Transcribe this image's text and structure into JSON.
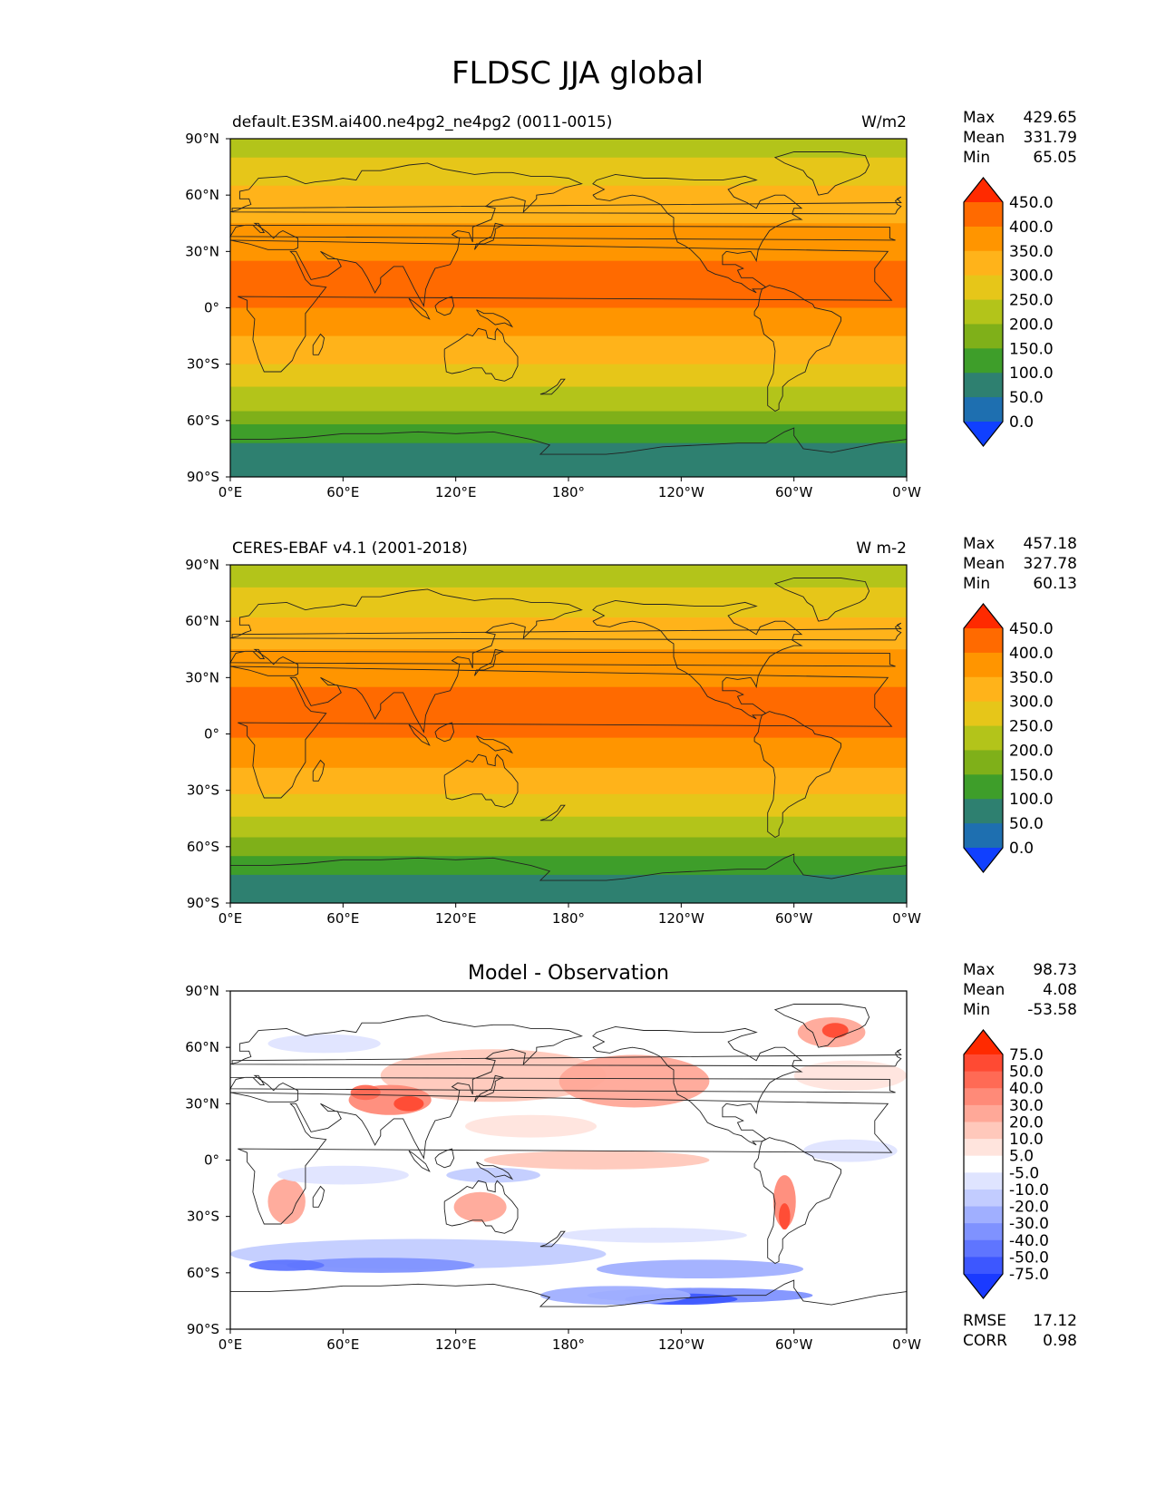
{
  "title": "FLDSC JJA global",
  "x_ticks": [
    "0°E",
    "60°E",
    "120°E",
    "180°",
    "120°W",
    "60°W",
    "0°W"
  ],
  "y_ticks": [
    "90°N",
    "60°N",
    "30°N",
    "0°",
    "30°S",
    "60°S",
    "90°S"
  ],
  "panels": [
    {
      "left_title": "default.E3SM.ai400.ne4pg2_ne4pg2 (0011-0015)",
      "center_title": "",
      "units": "W/m2",
      "stats": {
        "labels": [
          "Max",
          "Mean",
          "Min"
        ],
        "values": [
          "429.65",
          "331.79",
          "65.05"
        ]
      },
      "colorbar": {
        "labels": [
          "450.0",
          "400.0",
          "350.0",
          "300.0",
          "250.0",
          "200.0",
          "150.0",
          "100.0",
          "50.0",
          "0.0"
        ],
        "colors": [
          "#ff2a00",
          "#ff6a00",
          "#ff9500",
          "#ffb31a",
          "#e6c619",
          "#b3c41a",
          "#7fb019",
          "#3e9e2a",
          "#2e8070",
          "#1e6fb0",
          "#1040ff"
        ]
      },
      "map_bands": [
        {
          "lat0": 90,
          "lat1": 80,
          "color": "#b3c41a"
        },
        {
          "lat0": 80,
          "lat1": 65,
          "color": "#e6c619"
        },
        {
          "lat0": 65,
          "lat1": 45,
          "color": "#ffb31a"
        },
        {
          "lat0": 45,
          "lat1": 25,
          "color": "#ff9500"
        },
        {
          "lat0": 25,
          "lat1": 0,
          "color": "#ff6a00"
        },
        {
          "lat0": 0,
          "lat1": -15,
          "color": "#ff9500"
        },
        {
          "lat0": -15,
          "lat1": -30,
          "color": "#ffb31a"
        },
        {
          "lat0": -30,
          "lat1": -42,
          "color": "#e6c619"
        },
        {
          "lat0": -42,
          "lat1": -55,
          "color": "#b3c41a"
        },
        {
          "lat0": -55,
          "lat1": -62,
          "color": "#7fb019"
        },
        {
          "lat0": -62,
          "lat1": -72,
          "color": "#3e9e2a"
        },
        {
          "lat0": -72,
          "lat1": -90,
          "color": "#2e8070"
        }
      ]
    },
    {
      "left_title": "CERES-EBAF v4.1 (2001-2018)",
      "center_title": "",
      "units": "W m-2",
      "stats": {
        "labels": [
          "Max",
          "Mean",
          "Min"
        ],
        "values": [
          "457.18",
          "327.78",
          "60.13"
        ]
      },
      "colorbar": {
        "labels": [
          "450.0",
          "400.0",
          "350.0",
          "300.0",
          "250.0",
          "200.0",
          "150.0",
          "100.0",
          "50.0",
          "0.0"
        ],
        "colors": [
          "#ff2a00",
          "#ff6a00",
          "#ff9500",
          "#ffb31a",
          "#e6c619",
          "#b3c41a",
          "#7fb019",
          "#3e9e2a",
          "#2e8070",
          "#1e6fb0",
          "#1040ff"
        ]
      },
      "map_bands": [
        {
          "lat0": 90,
          "lat1": 78,
          "color": "#b3c41a"
        },
        {
          "lat0": 78,
          "lat1": 62,
          "color": "#e6c619"
        },
        {
          "lat0": 62,
          "lat1": 45,
          "color": "#ffb31a"
        },
        {
          "lat0": 45,
          "lat1": 25,
          "color": "#ff9500"
        },
        {
          "lat0": 25,
          "lat1": -2,
          "color": "#ff6a00"
        },
        {
          "lat0": -2,
          "lat1": -18,
          "color": "#ff9500"
        },
        {
          "lat0": -18,
          "lat1": -32,
          "color": "#ffb31a"
        },
        {
          "lat0": -32,
          "lat1": -44,
          "color": "#e6c619"
        },
        {
          "lat0": -44,
          "lat1": -55,
          "color": "#b3c41a"
        },
        {
          "lat0": -55,
          "lat1": -65,
          "color": "#7fb019"
        },
        {
          "lat0": -65,
          "lat1": -75,
          "color": "#3e9e2a"
        },
        {
          "lat0": -75,
          "lat1": -90,
          "color": "#2e8070"
        }
      ]
    },
    {
      "left_title": "",
      "center_title": "Model - Observation",
      "units": "",
      "stats": {
        "labels": [
          "Max",
          "Mean",
          "Min"
        ],
        "values": [
          "98.73",
          "4.08",
          "-53.58"
        ]
      },
      "colorbar": {
        "labels": [
          "75.0",
          "50.0",
          "40.0",
          "30.0",
          "20.0",
          "10.0",
          "5.0",
          "-5.0",
          "-10.0",
          "-20.0",
          "-30.0",
          "-40.0",
          "-50.0",
          "-75.0"
        ],
        "colors": [
          "#ff2a00",
          "#ff4a33",
          "#ff6a55",
          "#ff8a78",
          "#ffa898",
          "#ffc8bb",
          "#ffe4dd",
          "#ffffff",
          "#dfe4ff",
          "#c2ccff",
          "#a0afff",
          "#7f92ff",
          "#5f75ff",
          "#3d57ff",
          "#1a3aff"
        ]
      },
      "rmse": {
        "label": "RMSE",
        "value": "17.12"
      },
      "corr": {
        "label": "CORR",
        "value": "0.98"
      }
    }
  ]
}
